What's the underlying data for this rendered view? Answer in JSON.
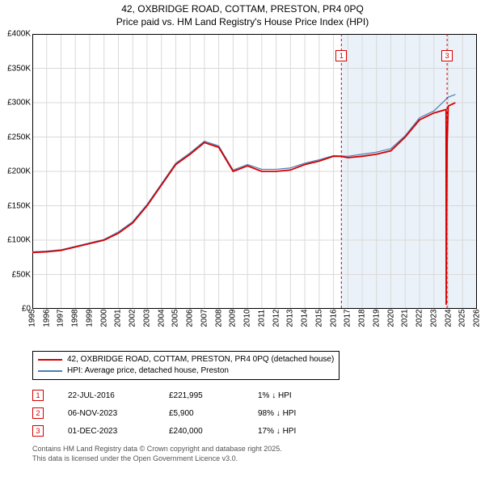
{
  "title": {
    "line1": "42, OXBRIDGE ROAD, COTTAM, PRESTON, PR4 0PQ",
    "line2": "Price paid vs. HM Land Registry's House Price Index (HPI)"
  },
  "chart": {
    "type": "line",
    "background_color": "#ffffff",
    "plot_border_color": "#000000",
    "grid_color": "#d9d9d9",
    "highlight_band": {
      "x_start": 2016.5,
      "x_end": 2026,
      "fill": "#eaf1f8"
    },
    "xlim": [
      1995,
      2026
    ],
    "ylim": [
      0,
      400000
    ],
    "ytick_step": 50000,
    "yticks": [
      "£0",
      "£50K",
      "£100K",
      "£150K",
      "£200K",
      "£250K",
      "£300K",
      "£350K",
      "£400K"
    ],
    "xticks": [
      1995,
      1996,
      1997,
      1998,
      1999,
      2000,
      2001,
      2002,
      2003,
      2004,
      2005,
      2006,
      2007,
      2008,
      2009,
      2010,
      2011,
      2012,
      2013,
      2014,
      2015,
      2016,
      2017,
      2018,
      2019,
      2020,
      2021,
      2022,
      2023,
      2024,
      2025,
      2026
    ],
    "series": [
      {
        "name": "42, OXBRIDGE ROAD, COTTAM, PRESTON, PR4 0PQ (detached house)",
        "color": "#d40000",
        "line_width": 1.8,
        "points": [
          [
            1995,
            82000
          ],
          [
            1996,
            83000
          ],
          [
            1997,
            85000
          ],
          [
            1998,
            90000
          ],
          [
            1999,
            95000
          ],
          [
            2000,
            100000
          ],
          [
            2001,
            110000
          ],
          [
            2002,
            125000
          ],
          [
            2003,
            150000
          ],
          [
            2004,
            180000
          ],
          [
            2005,
            210000
          ],
          [
            2006,
            225000
          ],
          [
            2007,
            242000
          ],
          [
            2008,
            235000
          ],
          [
            2009,
            200000
          ],
          [
            2010,
            208000
          ],
          [
            2011,
            200000
          ],
          [
            2012,
            200000
          ],
          [
            2013,
            202000
          ],
          [
            2014,
            210000
          ],
          [
            2015,
            215000
          ],
          [
            2016,
            222000
          ],
          [
            2016.5,
            221995
          ],
          [
            2017,
            220000
          ],
          [
            2018,
            222000
          ],
          [
            2019,
            225000
          ],
          [
            2020,
            230000
          ],
          [
            2021,
            250000
          ],
          [
            2022,
            275000
          ],
          [
            2023,
            285000
          ],
          [
            2023.85,
            290000
          ],
          [
            2023.86,
            5900
          ],
          [
            2023.92,
            240000
          ],
          [
            2024,
            295000
          ],
          [
            2024.5,
            300000
          ]
        ]
      },
      {
        "name": "HPI: Average price, detached house, Preston",
        "color": "#4a7fb5",
        "line_width": 1.2,
        "points": [
          [
            1995,
            83000
          ],
          [
            1996,
            84000
          ],
          [
            1997,
            86000
          ],
          [
            1998,
            91000
          ],
          [
            1999,
            96000
          ],
          [
            2000,
            101000
          ],
          [
            2001,
            112000
          ],
          [
            2002,
            127000
          ],
          [
            2003,
            152000
          ],
          [
            2004,
            182000
          ],
          [
            2005,
            212000
          ],
          [
            2006,
            227000
          ],
          [
            2007,
            244000
          ],
          [
            2008,
            237000
          ],
          [
            2009,
            202000
          ],
          [
            2010,
            210000
          ],
          [
            2011,
            203000
          ],
          [
            2012,
            203000
          ],
          [
            2013,
            205000
          ],
          [
            2014,
            212000
          ],
          [
            2015,
            217000
          ],
          [
            2016,
            223000
          ],
          [
            2017,
            222000
          ],
          [
            2018,
            225000
          ],
          [
            2019,
            228000
          ],
          [
            2020,
            233000
          ],
          [
            2021,
            252000
          ],
          [
            2022,
            278000
          ],
          [
            2023,
            288000
          ],
          [
            2024,
            308000
          ],
          [
            2024.5,
            312000
          ]
        ]
      }
    ],
    "markers": [
      {
        "num": "1",
        "x": 2016.55,
        "y_label_top": true,
        "color": "#d40000"
      },
      {
        "num": "3",
        "x": 2023.92,
        "y_label_top": true,
        "color": "#d40000"
      }
    ],
    "marker_line_color": "#d40000",
    "marker_line_dash": "3,3"
  },
  "legend": {
    "items": [
      {
        "color": "#d40000",
        "label": "42, OXBRIDGE ROAD, COTTAM, PRESTON, PR4 0PQ (detached house)",
        "width": 2
      },
      {
        "color": "#4a7fb5",
        "label": "HPI: Average price, detached house, Preston",
        "width": 1.2
      }
    ]
  },
  "markers_table": [
    {
      "num": "1",
      "color": "#d40000",
      "date": "22-JUL-2016",
      "price": "£221,995",
      "pct": "1%",
      "arrow": "↓",
      "suffix": "HPI"
    },
    {
      "num": "2",
      "color": "#d40000",
      "date": "06-NOV-2023",
      "price": "£5,900",
      "pct": "98%",
      "arrow": "↓",
      "suffix": "HPI"
    },
    {
      "num": "3",
      "color": "#d40000",
      "date": "01-DEC-2023",
      "price": "£240,000",
      "pct": "17%",
      "arrow": "↓",
      "suffix": "HPI"
    }
  ],
  "footer": {
    "line1": "Contains HM Land Registry data © Crown copyright and database right 2025.",
    "line2": "This data is licensed under the Open Government Licence v3.0."
  }
}
